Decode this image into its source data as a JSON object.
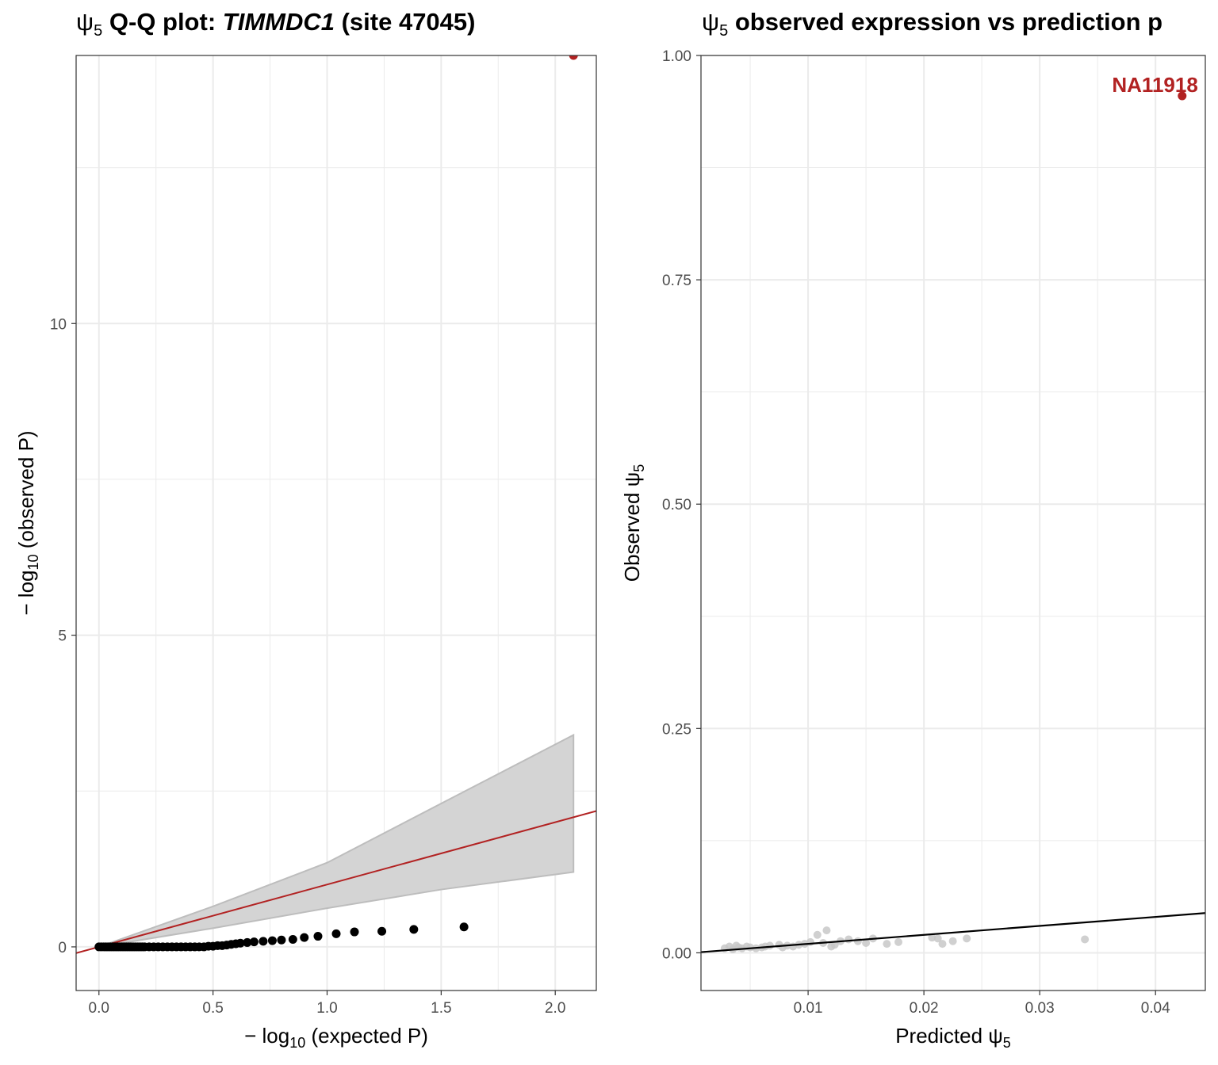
{
  "titles": {
    "left": {
      "psi": "ψ",
      "sub": "5",
      "bold_a": " Q-Q plot: ",
      "gene": "TIMMDC1",
      "bold_b": " (site 47045)"
    },
    "right": {
      "psi": "ψ",
      "sub": "5",
      "bold_a": " observed expression vs prediction p"
    }
  },
  "colors": {
    "highlight": "#b22222",
    "points": "#000000",
    "band": "#d4d4d4",
    "band_edge": "#bdbdbd",
    "faded_points": "#c8c8c8",
    "fit_line": "#000000",
    "grid": "#ebebeb"
  },
  "chart_data": [
    {
      "type": "scatter",
      "title": "ψ5 Q-Q plot: TIMMDC1 (site 47045)",
      "xlabel": "− log10 (expected P)",
      "ylabel": "− log10 (observed P)",
      "xlim": [
        -0.1,
        2.18
      ],
      "ylim": [
        -0.7,
        14.3
      ],
      "xticks": [
        0.0,
        0.5,
        1.0,
        1.5,
        2.0
      ],
      "yticks": [
        0,
        5,
        10
      ],
      "grid": true,
      "x": [
        0.0,
        0.01,
        0.02,
        0.03,
        0.04,
        0.05,
        0.06,
        0.07,
        0.08,
        0.09,
        0.1,
        0.11,
        0.12,
        0.13,
        0.14,
        0.15,
        0.16,
        0.17,
        0.18,
        0.19,
        0.2,
        0.22,
        0.24,
        0.26,
        0.28,
        0.3,
        0.32,
        0.34,
        0.36,
        0.38,
        0.4,
        0.42,
        0.44,
        0.46,
        0.48,
        0.5,
        0.52,
        0.54,
        0.56,
        0.58,
        0.6,
        0.62,
        0.65,
        0.68,
        0.72,
        0.76,
        0.8,
        0.85,
        0.9,
        0.96,
        1.04,
        1.12,
        1.24,
        1.38,
        1.6
      ],
      "y": [
        0.0,
        0.0,
        0.0,
        0.0,
        0.0,
        0.0,
        0.0,
        0.0,
        0.0,
        0.0,
        0.0,
        0.0,
        0.0,
        0.0,
        0.0,
        0.0,
        0.0,
        0.0,
        0.0,
        0.0,
        0.0,
        0.0,
        0.0,
        0.0,
        0.0,
        0.0,
        0.0,
        0.0,
        0.0,
        0.0,
        0.0,
        0.0,
        0.0,
        0.0,
        0.01,
        0.01,
        0.02,
        0.02,
        0.03,
        0.04,
        0.05,
        0.06,
        0.07,
        0.08,
        0.09,
        0.1,
        0.11,
        0.12,
        0.15,
        0.17,
        0.21,
        0.24,
        0.25,
        0.28,
        0.32
      ],
      "highlight": {
        "label": "NA11918",
        "x": 2.08,
        "y": 14.3
      },
      "reference_line": {
        "slope": 1,
        "intercept": 0,
        "color": "#b22222"
      },
      "confidence_band": {
        "x": [
          0.0,
          0.5,
          1.0,
          1.5,
          2.08
        ],
        "upper": [
          0.0,
          0.65,
          1.35,
          2.3,
          3.4
        ],
        "lower": [
          0.0,
          0.3,
          0.62,
          0.92,
          1.2
        ]
      }
    },
    {
      "type": "scatter",
      "title": "ψ5 observed expression vs prediction p",
      "xlabel": "Predicted ψ5",
      "ylabel": "Observed ψ5",
      "xlim": [
        0.00075,
        0.0443
      ],
      "ylim": [
        -0.042,
        1.0
      ],
      "xticks": [
        0.01,
        0.02,
        0.03,
        0.04
      ],
      "yticks": [
        0.0,
        0.25,
        0.5,
        0.75,
        1.0
      ],
      "grid": true,
      "x": [
        0.0028,
        0.0032,
        0.0035,
        0.0038,
        0.004,
        0.0043,
        0.0047,
        0.005,
        0.0055,
        0.006,
        0.0063,
        0.0067,
        0.0075,
        0.0078,
        0.0082,
        0.0087,
        0.0092,
        0.0097,
        0.0102,
        0.0108,
        0.0113,
        0.0116,
        0.012,
        0.0123,
        0.0128,
        0.0135,
        0.0143,
        0.015,
        0.0156,
        0.0168,
        0.0178,
        0.0207,
        0.0212,
        0.0216,
        0.0225,
        0.0237,
        0.0339
      ],
      "y": [
        0.005,
        0.007,
        0.004,
        0.008,
        0.006,
        0.005,
        0.007,
        0.006,
        0.005,
        0.006,
        0.007,
        0.008,
        0.009,
        0.006,
        0.008,
        0.007,
        0.009,
        0.01,
        0.012,
        0.02,
        0.011,
        0.025,
        0.007,
        0.009,
        0.013,
        0.015,
        0.013,
        0.011,
        0.016,
        0.01,
        0.012,
        0.017,
        0.016,
        0.01,
        0.013,
        0.016,
        0.015
      ],
      "highlight": {
        "label": "NA11918",
        "x": 0.0423,
        "y": 0.955
      },
      "fit_line": {
        "slope": 1.0,
        "intercept": 0.0,
        "color": "#000000"
      }
    }
  ]
}
